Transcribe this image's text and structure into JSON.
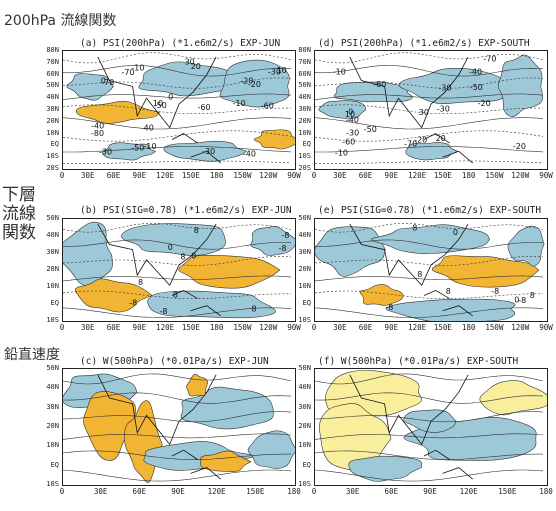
{
  "row_labels": {
    "row1": "200hPa 流線関数",
    "row2": "下層\n流線\n関数",
    "row3": "鉛直速度"
  },
  "panels": [
    {
      "id": "a",
      "title": "(a) PSI(200hPa) (*1.e6m2/s) EXP-JUN",
      "contour_labels": [
        "-70",
        "-60",
        "-50",
        "-40",
        "-80",
        "-70",
        "-60",
        "-50",
        "-40",
        "-30",
        "-20",
        "-10",
        "0",
        "10",
        "-10",
        "20",
        "-30",
        "-20",
        "30",
        "-30",
        "-40",
        "10",
        "-10",
        "0"
      ]
    },
    {
      "id": "d",
      "title": "(d) PSI(200hPa) (*1.e6m2/s) EXP-SOUTH",
      "contour_labels": [
        "-70",
        "-60",
        "-50",
        "-40",
        "-30",
        "-20",
        "-10",
        "-70",
        "-60",
        "-50",
        "-40",
        "-30",
        "-20",
        "-10",
        "0",
        "10",
        "20",
        "30",
        "-30",
        "-20"
      ]
    },
    {
      "id": "b",
      "title": "(b) PSI(SIG=0.78) (*1.e6m2/s) EXP-JUN",
      "contour_labels": [
        "-8",
        "8",
        "-8",
        "0",
        "-8",
        "8",
        "8",
        "8",
        "8",
        "0",
        "-8"
      ]
    },
    {
      "id": "e",
      "title": "(e) PSI(SIG=0.78) (*1.e6m2/s) EXP-SOUTH",
      "contour_labels": [
        "-8",
        "-8",
        "-8",
        "8",
        "8",
        "0",
        "8",
        "8",
        "0"
      ]
    },
    {
      "id": "c",
      "title": "(c) W(500hPa) (*0.01Pa/s) EXP-JUN",
      "contour_labels": []
    },
    {
      "id": "f",
      "title": "(f) W(500hPa) (*0.01Pa/s) EXP-SOUTH",
      "contour_labels": []
    }
  ],
  "lat_ticks_full": [
    "80N",
    "70N",
    "60N",
    "50N",
    "40N",
    "30N",
    "20N",
    "10N",
    "EQ",
    "10S",
    "20S"
  ],
  "lat_ticks_low": [
    "50N",
    "40N",
    "30N",
    "20N",
    "10N",
    "EQ",
    "10S"
  ],
  "lon_ticks_global": [
    "0",
    "30E",
    "60E",
    "90E",
    "120E",
    "150E",
    "180",
    "150W",
    "120W",
    "90W"
  ],
  "lon_ticks_half": [
    "0",
    "30E",
    "60E",
    "90E",
    "120E",
    "150E",
    "180"
  ],
  "colors": {
    "positive": "#f2b533",
    "negative": "#9cc8d8",
    "yellow": "#f8ee9c",
    "contour": "#333333"
  }
}
